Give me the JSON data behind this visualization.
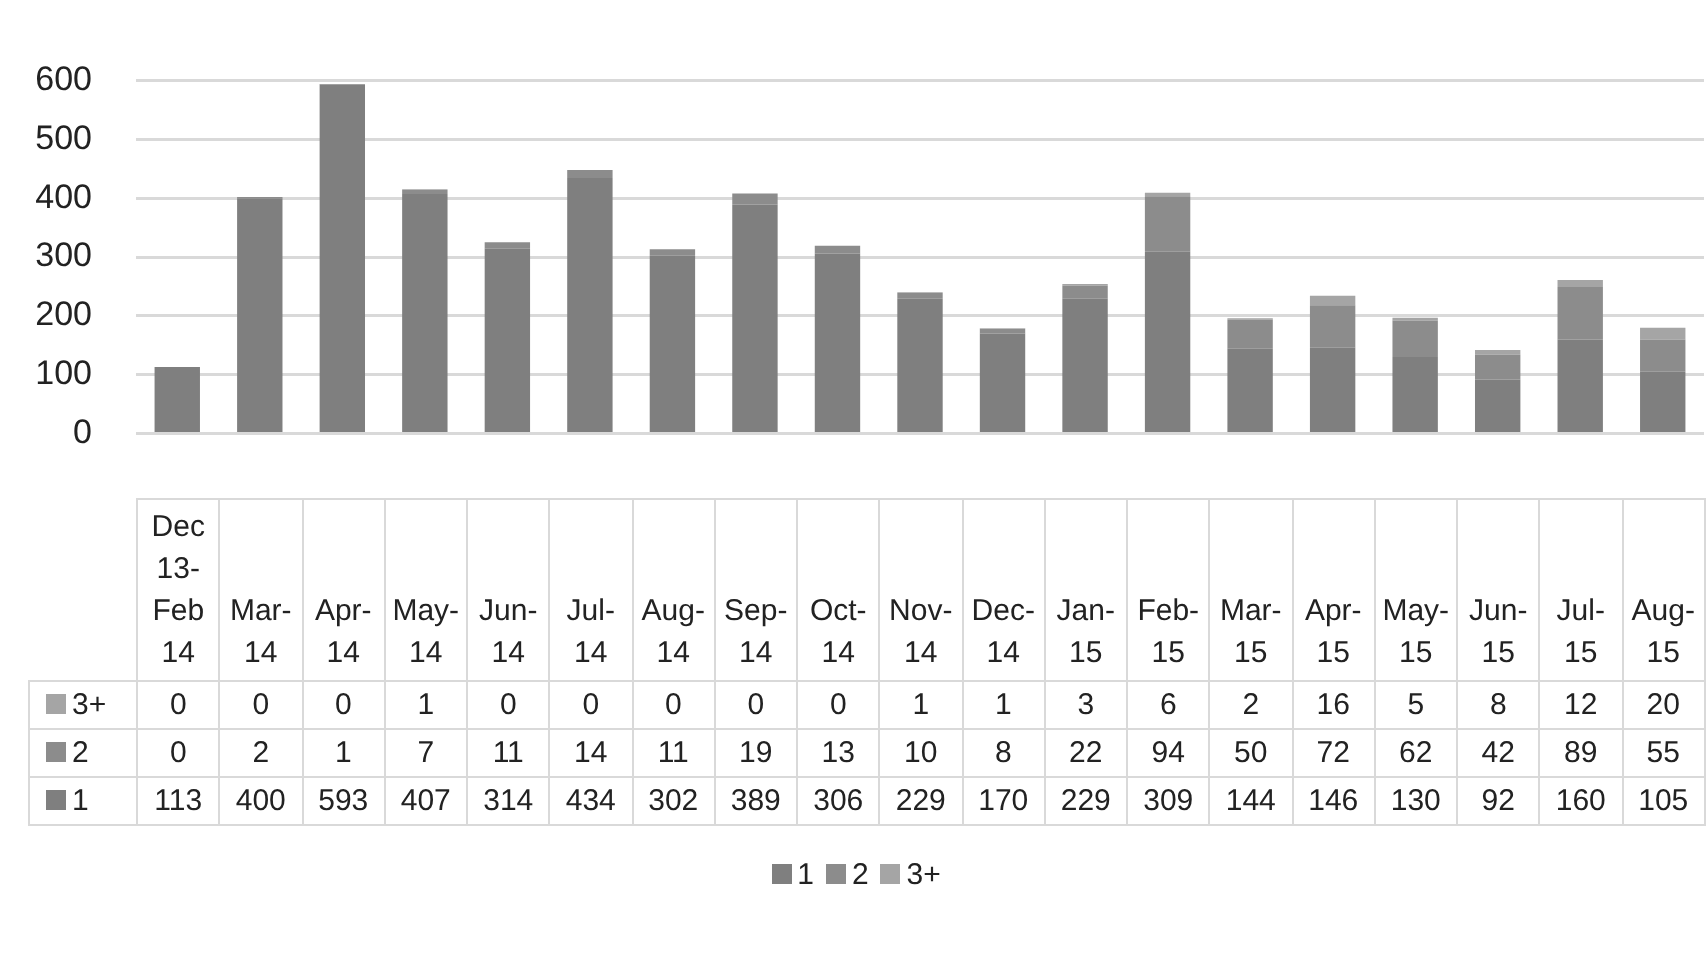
{
  "chart_data": {
    "type": "bar",
    "stacked": true,
    "categories": [
      "Dec 13-Feb 14",
      "Mar-14",
      "Apr-14",
      "May-14",
      "Jun-14",
      "Jul-14",
      "Aug-14",
      "Sep-14",
      "Oct-14",
      "Nov-14",
      "Dec-14",
      "Jan-15",
      "Feb-15",
      "Mar-15",
      "Apr-15",
      "May-15",
      "Jun-15",
      "Jul-15",
      "Aug-15"
    ],
    "series": [
      {
        "name": "1",
        "color": "#7f7f7f",
        "values": [
          113,
          400,
          593,
          407,
          314,
          434,
          302,
          389,
          306,
          229,
          170,
          229,
          309,
          144,
          146,
          130,
          92,
          160,
          105
        ]
      },
      {
        "name": "2",
        "color": "#8c8c8c",
        "values": [
          0,
          2,
          1,
          7,
          11,
          14,
          11,
          19,
          13,
          10,
          8,
          22,
          94,
          50,
          72,
          62,
          42,
          89,
          55
        ]
      },
      {
        "name": "3+",
        "color": "#a5a5a5",
        "values": [
          0,
          0,
          0,
          1,
          0,
          0,
          0,
          0,
          0,
          1,
          1,
          3,
          6,
          2,
          16,
          5,
          8,
          12,
          20
        ]
      }
    ],
    "ylim": [
      0,
      600
    ],
    "yticks": [
      0,
      100,
      200,
      300,
      400,
      500,
      600
    ],
    "grid": "y",
    "legend": "bottom",
    "data_labels": true
  }
}
